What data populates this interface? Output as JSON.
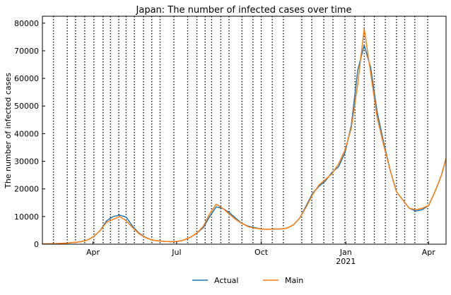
{
  "chart_data": {
    "type": "line",
    "title": "Japan: The number of infected cases over time",
    "xlabel": "",
    "ylabel": "The number of infected cases",
    "x_range": [
      "2020-02-06",
      "2021-04-20"
    ],
    "ylim": [
      0,
      82500
    ],
    "x_ticks": [
      {
        "date": "2020-04-01",
        "label": "Apr",
        "sublabel": ""
      },
      {
        "date": "2020-07-01",
        "label": "Jul",
        "sublabel": ""
      },
      {
        "date": "2020-10-01",
        "label": "Oct",
        "sublabel": ""
      },
      {
        "date": "2021-01-01",
        "label": "Jan",
        "sublabel": "2021"
      },
      {
        "date": "2021-04-01",
        "label": "Apr",
        "sublabel": ""
      }
    ],
    "y_ticks": [
      0,
      10000,
      20000,
      30000,
      40000,
      50000,
      60000,
      70000,
      80000
    ],
    "y_tick_labels": [
      "0",
      "10000",
      "20000",
      "30000",
      "40000",
      "50000",
      "60000",
      "70000",
      "80000"
    ],
    "change_points": [
      "2020-02-18",
      "2020-03-04",
      "2020-03-13",
      "2020-03-23",
      "2020-04-02",
      "2020-04-12",
      "2020-04-20",
      "2020-04-29",
      "2020-05-07",
      "2020-05-16",
      "2020-05-26",
      "2020-06-04",
      "2020-06-13",
      "2020-06-28",
      "2020-07-13",
      "2020-07-23",
      "2020-08-01",
      "2020-08-08",
      "2020-08-18",
      "2020-08-27",
      "2020-09-10",
      "2020-09-22",
      "2020-10-01",
      "2020-10-13",
      "2020-10-25",
      "2020-11-14",
      "2020-11-25",
      "2020-12-08",
      "2020-12-18",
      "2020-12-31",
      "2021-01-11",
      "2021-01-21",
      "2021-02-01",
      "2021-02-13",
      "2021-02-25",
      "2021-03-06",
      "2021-03-17",
      "2021-03-31"
    ],
    "legend": {
      "placement": "bottom-center",
      "columns": 2
    },
    "series": [
      {
        "name": "Actual",
        "color": "#1f77b4",
        "points": [
          [
            "2020-02-06",
            100
          ],
          [
            "2020-02-20",
            200
          ],
          [
            "2020-03-05",
            400
          ],
          [
            "2020-03-19",
            900
          ],
          [
            "2020-03-26",
            1500
          ],
          [
            "2020-04-02",
            2800
          ],
          [
            "2020-04-09",
            5000
          ],
          [
            "2020-04-16",
            8500
          ],
          [
            "2020-04-23",
            10000
          ],
          [
            "2020-04-30",
            10500
          ],
          [
            "2020-05-07",
            9800
          ],
          [
            "2020-05-14",
            6500
          ],
          [
            "2020-05-21",
            4000
          ],
          [
            "2020-05-28",
            2500
          ],
          [
            "2020-06-04",
            1500
          ],
          [
            "2020-06-11",
            1200
          ],
          [
            "2020-06-18",
            1000
          ],
          [
            "2020-06-25",
            900
          ],
          [
            "2020-07-02",
            1000
          ],
          [
            "2020-07-09",
            1500
          ],
          [
            "2020-07-16",
            2500
          ],
          [
            "2020-07-23",
            4000
          ],
          [
            "2020-07-30",
            6000
          ],
          [
            "2020-08-06",
            10000
          ],
          [
            "2020-08-13",
            13500
          ],
          [
            "2020-08-20",
            13000
          ],
          [
            "2020-08-27",
            11500
          ],
          [
            "2020-09-03",
            9500
          ],
          [
            "2020-09-10",
            7500
          ],
          [
            "2020-09-17",
            6500
          ],
          [
            "2020-09-24",
            6000
          ],
          [
            "2020-10-01",
            5500
          ],
          [
            "2020-10-08",
            5400
          ],
          [
            "2020-10-15",
            5500
          ],
          [
            "2020-10-22",
            5500
          ],
          [
            "2020-10-29",
            5800
          ],
          [
            "2020-11-05",
            7000
          ],
          [
            "2020-11-12",
            9500
          ],
          [
            "2020-11-19",
            14000
          ],
          [
            "2020-11-26",
            18500
          ],
          [
            "2020-12-03",
            21000
          ],
          [
            "2020-12-10",
            23000
          ],
          [
            "2020-12-17",
            26000
          ],
          [
            "2020-12-24",
            28000
          ],
          [
            "2020-12-31",
            33000
          ],
          [
            "2021-01-07",
            43000
          ],
          [
            "2021-01-14",
            63000
          ],
          [
            "2021-01-21",
            72000
          ],
          [
            "2021-01-28",
            64000
          ],
          [
            "2021-02-04",
            48000
          ],
          [
            "2021-02-11",
            37000
          ],
          [
            "2021-02-18",
            27000
          ],
          [
            "2021-02-25",
            19000
          ],
          [
            "2021-03-04",
            16000
          ],
          [
            "2021-03-11",
            13000
          ],
          [
            "2021-03-18",
            12000
          ],
          [
            "2021-03-25",
            12500
          ],
          [
            "2021-04-01",
            14000
          ],
          [
            "2021-04-08",
            19000
          ],
          [
            "2021-04-15",
            25000
          ],
          [
            "2021-04-20",
            31000
          ]
        ]
      },
      {
        "name": "Main",
        "color": "#ff7f0e",
        "points": [
          [
            "2020-02-06",
            100
          ],
          [
            "2020-02-20",
            200
          ],
          [
            "2020-03-05",
            400
          ],
          [
            "2020-03-19",
            900
          ],
          [
            "2020-03-26",
            1500
          ],
          [
            "2020-04-02",
            2800
          ],
          [
            "2020-04-09",
            5000
          ],
          [
            "2020-04-16",
            8000
          ],
          [
            "2020-04-23",
            9000
          ],
          [
            "2020-04-30",
            10000
          ],
          [
            "2020-05-07",
            8500
          ],
          [
            "2020-05-14",
            6000
          ],
          [
            "2020-05-21",
            3800
          ],
          [
            "2020-05-28",
            2400
          ],
          [
            "2020-06-04",
            1500
          ],
          [
            "2020-06-11",
            1200
          ],
          [
            "2020-06-18",
            1000
          ],
          [
            "2020-06-25",
            900
          ],
          [
            "2020-07-02",
            1000
          ],
          [
            "2020-07-09",
            1500
          ],
          [
            "2020-07-16",
            2500
          ],
          [
            "2020-07-23",
            4000
          ],
          [
            "2020-07-30",
            6500
          ],
          [
            "2020-08-06",
            11000
          ],
          [
            "2020-08-13",
            14500
          ],
          [
            "2020-08-20",
            13000
          ],
          [
            "2020-08-27",
            11000
          ],
          [
            "2020-09-03",
            9000
          ],
          [
            "2020-09-10",
            7500
          ],
          [
            "2020-09-17",
            6300
          ],
          [
            "2020-09-24",
            5800
          ],
          [
            "2020-10-01",
            5500
          ],
          [
            "2020-10-08",
            5400
          ],
          [
            "2020-10-15",
            5500
          ],
          [
            "2020-10-22",
            5500
          ],
          [
            "2020-10-29",
            5800
          ],
          [
            "2020-11-05",
            7000
          ],
          [
            "2020-11-12",
            9500
          ],
          [
            "2020-11-19",
            13500
          ],
          [
            "2020-11-26",
            18000
          ],
          [
            "2020-12-03",
            21500
          ],
          [
            "2020-12-10",
            23500
          ],
          [
            "2020-12-17",
            25500
          ],
          [
            "2020-12-24",
            29000
          ],
          [
            "2020-12-31",
            34000
          ],
          [
            "2021-01-07",
            42000
          ],
          [
            "2021-01-14",
            58000
          ],
          [
            "2021-01-21",
            78000
          ],
          [
            "2021-01-28",
            62000
          ],
          [
            "2021-02-04",
            46000
          ],
          [
            "2021-02-11",
            36000
          ],
          [
            "2021-02-18",
            27000
          ],
          [
            "2021-02-25",
            19000
          ],
          [
            "2021-03-04",
            16000
          ],
          [
            "2021-03-11",
            13000
          ],
          [
            "2021-03-18",
            12500
          ],
          [
            "2021-03-25",
            13000
          ],
          [
            "2021-04-01",
            14000
          ],
          [
            "2021-04-08",
            19000
          ],
          [
            "2021-04-15",
            25000
          ],
          [
            "2021-04-20",
            31000
          ]
        ]
      }
    ]
  }
}
